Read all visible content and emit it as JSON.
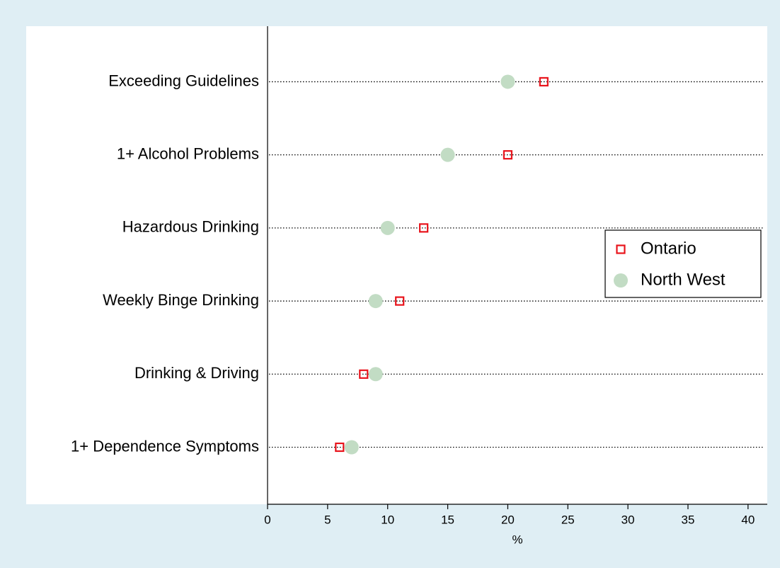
{
  "chart_data": {
    "type": "dot",
    "categories": [
      "Exceeding Guidelines",
      "1+ Alcohol Problems",
      "Hazardous Drinking",
      "Weekly Binge Drinking",
      "Drinking & Driving",
      "1+ Dependence Symptoms"
    ],
    "series": [
      {
        "name": "Ontario",
        "color": "#e8141c",
        "marker": "hollow-square",
        "values": [
          23,
          20,
          13,
          11,
          8,
          6
        ]
      },
      {
        "name": "North West",
        "color": "#c2dcc4",
        "marker": "circle",
        "values": [
          20,
          15,
          10,
          9,
          9,
          7
        ]
      }
    ],
    "xlabel": "%",
    "xlim": [
      0,
      41.6
    ],
    "xticks": [
      0,
      5,
      10,
      15,
      20,
      25,
      30,
      35,
      40
    ],
    "legend": "right"
  }
}
